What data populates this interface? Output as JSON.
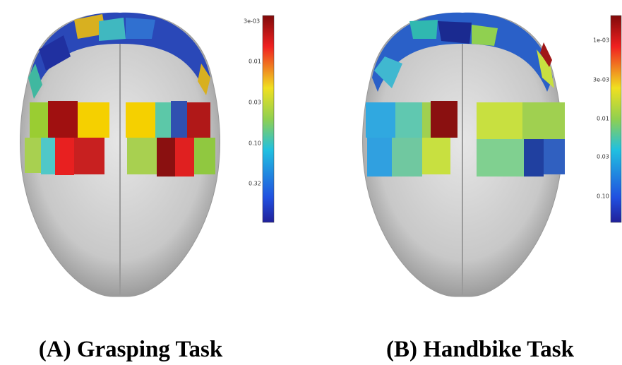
{
  "panels": [
    {
      "caption": "(A) Grasping Task",
      "colorbar": {
        "ticks": [
          "3e-03",
          "0.01",
          "0.03",
          "0.10",
          "0.32"
        ]
      }
    },
    {
      "caption": "(B) Handbike Task",
      "colorbar": {
        "ticks": [
          "1e-03",
          "3e-03",
          "0.01",
          "0.03",
          "0.10"
        ]
      }
    }
  ]
}
